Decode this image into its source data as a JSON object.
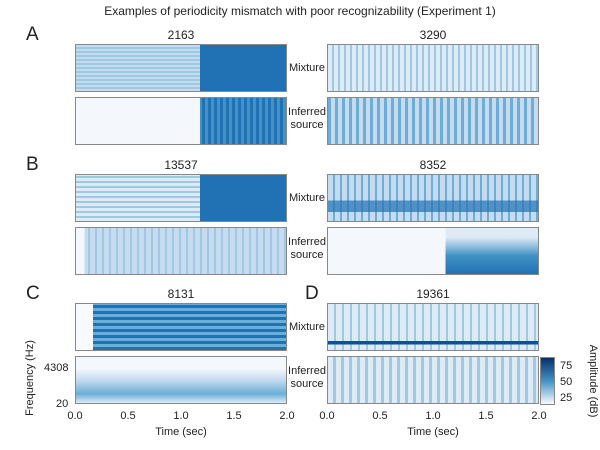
{
  "figure_title": "Examples of periodicity mismatch with poor recognizability (Experiment 1)",
  "row_labels": {
    "mixture": "Mixture",
    "inferred": "Inferred source"
  },
  "colors": {
    "low": "#f7fbff",
    "high": "#08306b",
    "mid": "#2171b5"
  },
  "chart_data": {
    "type": "heatmap",
    "title": "Examples of periodicity mismatch with poor recognizability (Experiment 1)",
    "panels": [
      {
        "letter": "A",
        "id": "2163"
      },
      {
        "letter": "",
        "id": "3290"
      },
      {
        "letter": "B",
        "id": "13537"
      },
      {
        "letter": "",
        "id": "8352"
      },
      {
        "letter": "C",
        "id": "8131"
      },
      {
        "letter": "D",
        "id": "19361"
      }
    ],
    "xlabel": "Time (sec)",
    "xlim": [
      0.0,
      2.0
    ],
    "xticks": [
      "0.0",
      "0.5",
      "1.0",
      "1.5",
      "2.0"
    ],
    "ylabel": "Frequency (Hz)",
    "yticks": [
      "20",
      "4308"
    ],
    "colorbar": {
      "label": "Amplitude (dB)",
      "ticks": [
        "75",
        "50",
        "25"
      ],
      "colormap": "Blues"
    }
  }
}
